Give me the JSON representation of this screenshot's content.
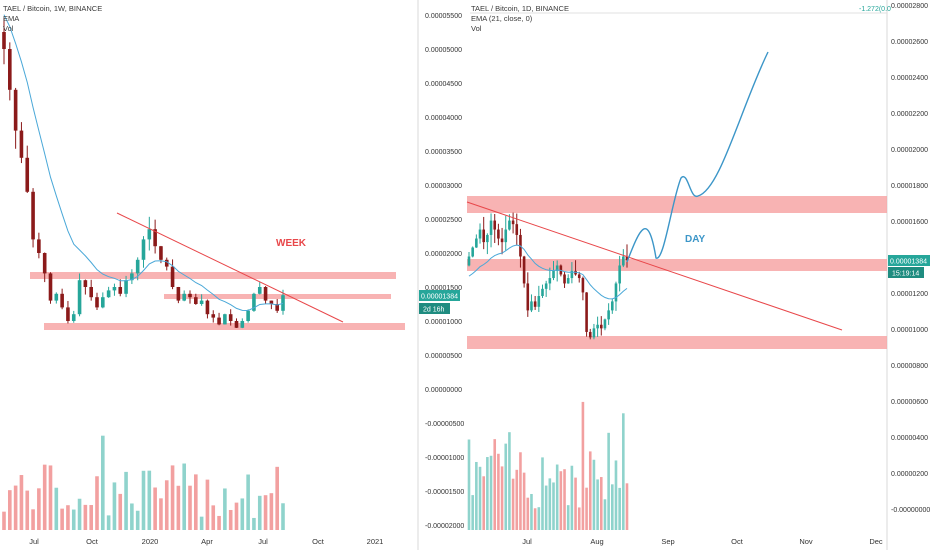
{
  "left_panel": {
    "legend": [
      "TAEL / Bitcoin, 1W, BINANCE",
      "EMA",
      "Vol"
    ],
    "annotation": "WEEK",
    "price_tag": "0.00001384",
    "countdown_tag": "2d 16h",
    "y_ticks": [
      "0.00005500",
      "0.00005000",
      "0.00004500",
      "0.00004000",
      "0.00003500",
      "0.00003000",
      "0.00002500",
      "0.00002000",
      "0.00001500",
      "0.00001000",
      "0.00000500",
      "0.00000000",
      "-0.00000500",
      "-0.00001000",
      "-0.00001500",
      "-0.00002000"
    ],
    "x_ticks": [
      "Jul",
      "Oct",
      "2020",
      "Apr",
      "Jul",
      "Oct",
      "2021"
    ]
  },
  "right_panel": {
    "legend": [
      "TAEL / Bitcoin, 1D, BINANCE",
      "EMA (21, close, 0)",
      "Vol"
    ],
    "annotation": "DAY",
    "top_label": "-1.272(0.0",
    "price_tag": "0.00001384",
    "countdown_tag": "15:19:14",
    "y_ticks": [
      "0.00002800",
      "0.00002600",
      "0.00002400",
      "0.00002200",
      "0.00002000",
      "0.00001800",
      "0.00001600",
      "0.00001400",
      "0.00001200",
      "0.00001000",
      "0.00000800",
      "0.00000600",
      "0.00000400",
      "0.00000200",
      "-0.00000000"
    ],
    "x_ticks": [
      "Jul",
      "Aug",
      "Sep",
      "Oct",
      "Nov",
      "Dec"
    ]
  },
  "colors": {
    "up": "#26a69a",
    "down": "#8b1a1a",
    "ema": "#4aa8d8",
    "trend": "#e8474a",
    "zone": "#f7a6a6",
    "tag": "#26a69a"
  },
  "chart_data": [
    {
      "type": "candlestick",
      "title": "TAEL / Bitcoin, 1W, BINANCE",
      "indicators": [
        "EMA",
        "Vol"
      ],
      "ylim": [
        -2e-05,
        5.5e-05
      ],
      "last_price": 1.384e-05,
      "closes": [
        5e-05,
        4.4e-05,
        3.8e-05,
        3.4e-05,
        2.9e-05,
        2.2e-05,
        2e-05,
        1.7e-05,
        1.3e-05,
        1.4e-05,
        1.2e-05,
        1e-05,
        1.1e-05,
        1.6e-05,
        1.5e-05,
        1.35e-05,
        1.2e-05,
        1.35e-05,
        1.45e-05,
        1.5e-05,
        1.4e-05,
        1.6e-05,
        1.7e-05,
        1.9e-05,
        2.2e-05,
        2.35e-05,
        2.1e-05,
        1.9e-05,
        1.8e-05,
        1.5e-05,
        1.3e-05,
        1.4e-05,
        1.35e-05,
        1.25e-05,
        1.3e-05,
        1.1e-05,
        1.05e-05,
        9.5e-06,
        1.1e-05,
        1e-05,
        9e-06,
        1e-05,
        1.15e-05,
        1.4e-05,
        1.5e-05,
        1.3e-05,
        1.25e-05,
        1.15e-05,
        1.38e-05
      ],
      "zones": [
        [
          1.6e-05,
          1.7e-05
        ],
        [
          1.35e-05,
          1.4e-05
        ],
        [
          9.5e-06,
          1.02e-05
        ]
      ],
      "annotation": "WEEK"
    },
    {
      "type": "candlestick",
      "title": "TAEL / Bitcoin, 1D, BINANCE",
      "indicators": [
        "EMA (21, close, 0)",
        "Vol"
      ],
      "ylim": [
        -0.0,
        2.8e-05
      ],
      "last_price": 1.384e-05,
      "closes": [
        1.4e-05,
        1.45e-05,
        1.5e-05,
        1.55e-05,
        1.48e-05,
        1.52e-05,
        1.6e-05,
        1.55e-05,
        1.5e-05,
        1.48e-05,
        1.55e-05,
        1.6e-05,
        1.58e-05,
        1.52e-05,
        1.4e-05,
        1.25e-05,
        1.1e-05,
        1.15e-05,
        1.12e-05,
        1.18e-05,
        1.22e-05,
        1.25e-05,
        1.28e-05,
        1.32e-05,
        1.35e-05,
        1.3e-05,
        1.25e-05,
        1.28e-05,
        1.32e-05,
        1.3e-05,
        1.28e-05,
        1.2e-05,
        9.8e-06,
        9.5e-06,
        1e-05,
        1.02e-05,
        1e-05,
        1.05e-05,
        1.1e-05,
        1.15e-05,
        1.25e-05,
        1.35e-05,
        1.4e-05,
        1.38e-05
      ],
      "zones": [
        [
          1.65e-05,
          1.75e-05
        ],
        [
          1.3e-05,
          1.38e-05
        ],
        [
          8.8e-06,
          9.5e-06
        ]
      ],
      "projection": "drawn path up to 0.0000255",
      "annotation": "DAY"
    }
  ]
}
